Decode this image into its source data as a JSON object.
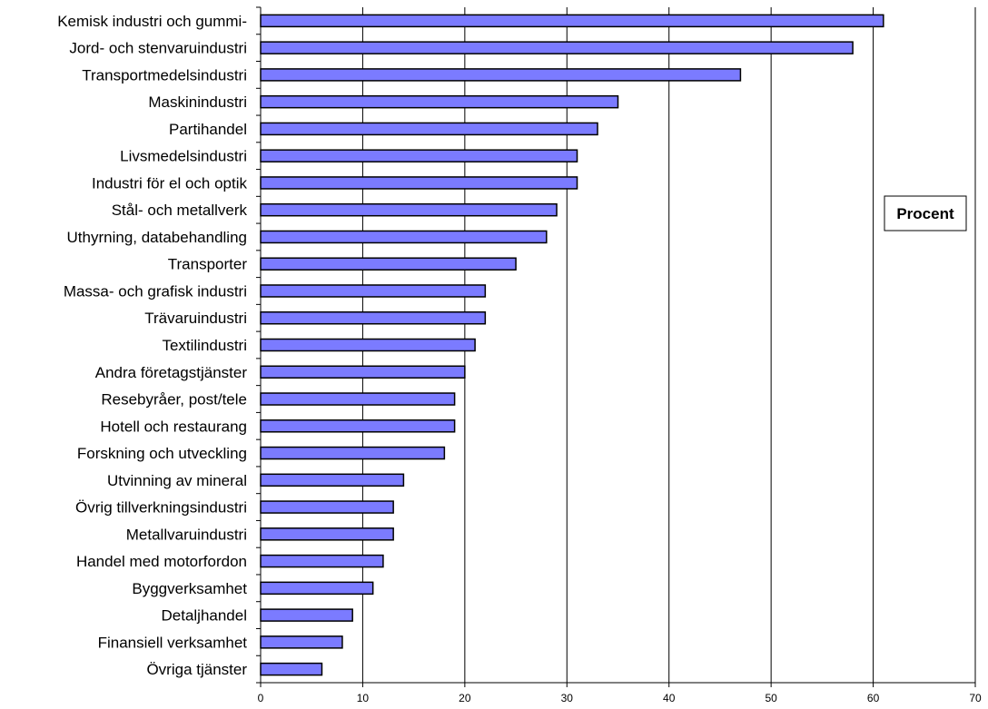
{
  "chart_data": {
    "type": "bar",
    "orientation": "horizontal",
    "categories": [
      "Kemisk industri och gummi-",
      "Jord- och stenvaruindustri",
      "Transportmedelsindustri",
      "Maskinindustri",
      "Partihandel",
      "Livsmedelsindustri",
      "Industri för el och optik",
      "Stål- och metallverk",
      "Uthyrning, databehandling",
      "Transporter",
      "Massa- och grafisk industri",
      "Trävaruindustri",
      "Textilindustri",
      "Andra företagstjänster",
      "Resebyråer, post/tele",
      "Hotell och restaurang",
      "Forskning och utveckling",
      "Utvinning av mineral",
      "Övrig tillverkningsindustri",
      "Metallvaruindustri",
      "Handel med motorfordon",
      "Byggverksamhet",
      "Detaljhandel",
      "Finansiell verksamhet",
      "Övriga tjänster"
    ],
    "values": [
      61,
      58,
      47,
      35,
      33,
      31,
      31,
      29,
      28,
      25,
      22,
      22,
      21,
      20,
      19,
      19,
      18,
      14,
      13,
      13,
      12,
      11,
      9,
      8,
      6
    ],
    "xlim": [
      0,
      70
    ],
    "xticks": [
      0,
      10,
      20,
      30,
      40,
      50,
      60,
      70
    ],
    "grid": true,
    "legend_box": "Procent",
    "legend_position": "right",
    "bar_color": "#7b7bff",
    "bar_edge_color": "#000000",
    "grid_color": "#000000"
  }
}
